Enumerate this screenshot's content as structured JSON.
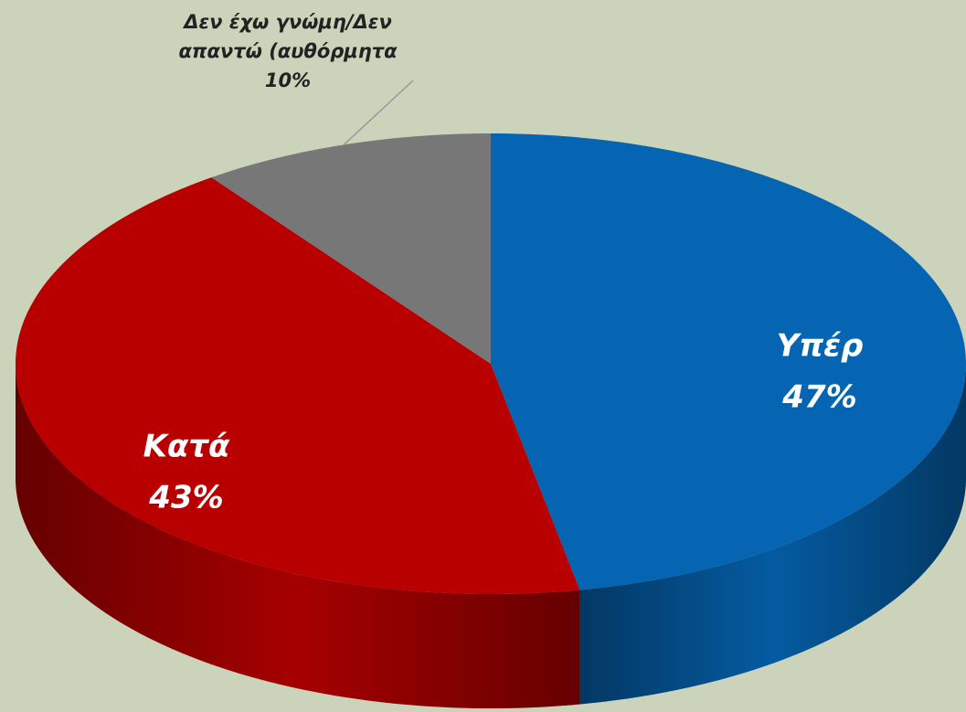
{
  "chart_data": {
    "type": "pie3d",
    "categories": [
      "Υπέρ",
      "Κατά",
      "Δεν έχω γνώμη/Δεν απαντώ (αυθόρμητα"
    ],
    "values": [
      47,
      43,
      10
    ],
    "value_labels": [
      "47%",
      "43%",
      "10%"
    ],
    "colors": [
      "#0565b3",
      "#b80000",
      "#777777"
    ]
  }
}
